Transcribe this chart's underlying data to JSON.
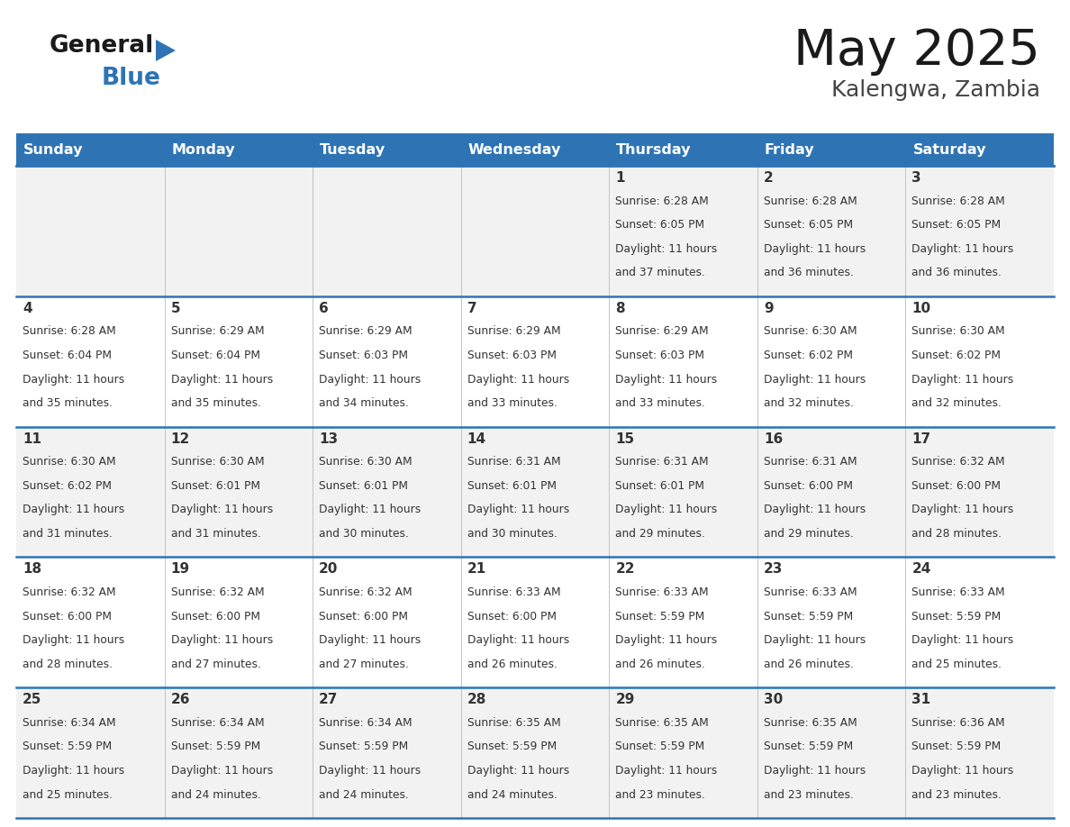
{
  "title": "May 2025",
  "subtitle": "Kalengwa, Zambia",
  "header_bg": "#2E74B5",
  "header_text_color": "#FFFFFF",
  "cell_bg_odd": "#F2F2F2",
  "cell_bg_even": "#FFFFFF",
  "border_color": "#2E74B5",
  "day_names": [
    "Sunday",
    "Monday",
    "Tuesday",
    "Wednesday",
    "Thursday",
    "Friday",
    "Saturday"
  ],
  "days": [
    {
      "day": 1,
      "col": 4,
      "row": 0,
      "sunrise": "6:28 AM",
      "sunset": "6:05 PM",
      "daylight": "11 hours and 37 minutes."
    },
    {
      "day": 2,
      "col": 5,
      "row": 0,
      "sunrise": "6:28 AM",
      "sunset": "6:05 PM",
      "daylight": "11 hours and 36 minutes."
    },
    {
      "day": 3,
      "col": 6,
      "row": 0,
      "sunrise": "6:28 AM",
      "sunset": "6:05 PM",
      "daylight": "11 hours and 36 minutes."
    },
    {
      "day": 4,
      "col": 0,
      "row": 1,
      "sunrise": "6:28 AM",
      "sunset": "6:04 PM",
      "daylight": "11 hours and 35 minutes."
    },
    {
      "day": 5,
      "col": 1,
      "row": 1,
      "sunrise": "6:29 AM",
      "sunset": "6:04 PM",
      "daylight": "11 hours and 35 minutes."
    },
    {
      "day": 6,
      "col": 2,
      "row": 1,
      "sunrise": "6:29 AM",
      "sunset": "6:03 PM",
      "daylight": "11 hours and 34 minutes."
    },
    {
      "day": 7,
      "col": 3,
      "row": 1,
      "sunrise": "6:29 AM",
      "sunset": "6:03 PM",
      "daylight": "11 hours and 33 minutes."
    },
    {
      "day": 8,
      "col": 4,
      "row": 1,
      "sunrise": "6:29 AM",
      "sunset": "6:03 PM",
      "daylight": "11 hours and 33 minutes."
    },
    {
      "day": 9,
      "col": 5,
      "row": 1,
      "sunrise": "6:30 AM",
      "sunset": "6:02 PM",
      "daylight": "11 hours and 32 minutes."
    },
    {
      "day": 10,
      "col": 6,
      "row": 1,
      "sunrise": "6:30 AM",
      "sunset": "6:02 PM",
      "daylight": "11 hours and 32 minutes."
    },
    {
      "day": 11,
      "col": 0,
      "row": 2,
      "sunrise": "6:30 AM",
      "sunset": "6:02 PM",
      "daylight": "11 hours and 31 minutes."
    },
    {
      "day": 12,
      "col": 1,
      "row": 2,
      "sunrise": "6:30 AM",
      "sunset": "6:01 PM",
      "daylight": "11 hours and 31 minutes."
    },
    {
      "day": 13,
      "col": 2,
      "row": 2,
      "sunrise": "6:30 AM",
      "sunset": "6:01 PM",
      "daylight": "11 hours and 30 minutes."
    },
    {
      "day": 14,
      "col": 3,
      "row": 2,
      "sunrise": "6:31 AM",
      "sunset": "6:01 PM",
      "daylight": "11 hours and 30 minutes."
    },
    {
      "day": 15,
      "col": 4,
      "row": 2,
      "sunrise": "6:31 AM",
      "sunset": "6:01 PM",
      "daylight": "11 hours and 29 minutes."
    },
    {
      "day": 16,
      "col": 5,
      "row": 2,
      "sunrise": "6:31 AM",
      "sunset": "6:00 PM",
      "daylight": "11 hours and 29 minutes."
    },
    {
      "day": 17,
      "col": 6,
      "row": 2,
      "sunrise": "6:32 AM",
      "sunset": "6:00 PM",
      "daylight": "11 hours and 28 minutes."
    },
    {
      "day": 18,
      "col": 0,
      "row": 3,
      "sunrise": "6:32 AM",
      "sunset": "6:00 PM",
      "daylight": "11 hours and 28 minutes."
    },
    {
      "day": 19,
      "col": 1,
      "row": 3,
      "sunrise": "6:32 AM",
      "sunset": "6:00 PM",
      "daylight": "11 hours and 27 minutes."
    },
    {
      "day": 20,
      "col": 2,
      "row": 3,
      "sunrise": "6:32 AM",
      "sunset": "6:00 PM",
      "daylight": "11 hours and 27 minutes."
    },
    {
      "day": 21,
      "col": 3,
      "row": 3,
      "sunrise": "6:33 AM",
      "sunset": "6:00 PM",
      "daylight": "11 hours and 26 minutes."
    },
    {
      "day": 22,
      "col": 4,
      "row": 3,
      "sunrise": "6:33 AM",
      "sunset": "5:59 PM",
      "daylight": "11 hours and 26 minutes."
    },
    {
      "day": 23,
      "col": 5,
      "row": 3,
      "sunrise": "6:33 AM",
      "sunset": "5:59 PM",
      "daylight": "11 hours and 26 minutes."
    },
    {
      "day": 24,
      "col": 6,
      "row": 3,
      "sunrise": "6:33 AM",
      "sunset": "5:59 PM",
      "daylight": "11 hours and 25 minutes."
    },
    {
      "day": 25,
      "col": 0,
      "row": 4,
      "sunrise": "6:34 AM",
      "sunset": "5:59 PM",
      "daylight": "11 hours and 25 minutes."
    },
    {
      "day": 26,
      "col": 1,
      "row": 4,
      "sunrise": "6:34 AM",
      "sunset": "5:59 PM",
      "daylight": "11 hours and 24 minutes."
    },
    {
      "day": 27,
      "col": 2,
      "row": 4,
      "sunrise": "6:34 AM",
      "sunset": "5:59 PM",
      "daylight": "11 hours and 24 minutes."
    },
    {
      "day": 28,
      "col": 3,
      "row": 4,
      "sunrise": "6:35 AM",
      "sunset": "5:59 PM",
      "daylight": "11 hours and 24 minutes."
    },
    {
      "day": 29,
      "col": 4,
      "row": 4,
      "sunrise": "6:35 AM",
      "sunset": "5:59 PM",
      "daylight": "11 hours and 23 minutes."
    },
    {
      "day": 30,
      "col": 5,
      "row": 4,
      "sunrise": "6:35 AM",
      "sunset": "5:59 PM",
      "daylight": "11 hours and 23 minutes."
    },
    {
      "day": 31,
      "col": 6,
      "row": 4,
      "sunrise": "6:36 AM",
      "sunset": "5:59 PM",
      "daylight": "11 hours and 23 minutes."
    }
  ]
}
